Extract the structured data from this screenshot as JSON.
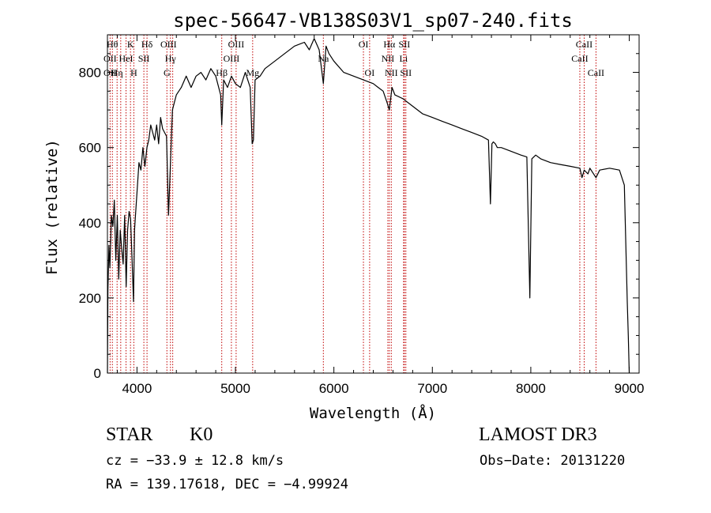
{
  "chart_data": {
    "type": "line",
    "title": "spec-56647-VB138S03V1_sp07-240.fits",
    "xlabel": "Wavelength (Å)",
    "ylabel": "Flux (relative)",
    "xlim": [
      3700,
      9100
    ],
    "ylim": [
      0,
      900
    ],
    "xticks": [
      4000,
      5000,
      6000,
      7000,
      8000,
      9000
    ],
    "yticks": [
      0,
      200,
      400,
      600,
      800
    ],
    "series": [
      {
        "name": "flux",
        "x": [
          3700,
          3705,
          3715,
          3725,
          3740,
          3755,
          3770,
          3785,
          3800,
          3815,
          3830,
          3845,
          3860,
          3875,
          3890,
          3905,
          3920,
          3935,
          3950,
          3965,
          3975,
          3985,
          4000,
          4020,
          4040,
          4060,
          4080,
          4101,
          4120,
          4140,
          4160,
          4180,
          4200,
          4220,
          4240,
          4260,
          4280,
          4300,
          4320,
          4340,
          4360,
          4380,
          4400,
          4450,
          4500,
          4550,
          4600,
          4650,
          4700,
          4750,
          4800,
          4850,
          4861,
          4880,
          4920,
          4960,
          5000,
          5050,
          5100,
          5150,
          5170,
          5183,
          5200,
          5250,
          5300,
          5400,
          5500,
          5600,
          5700,
          5750,
          5800,
          5850,
          5893,
          5920,
          5950,
          6000,
          6100,
          6200,
          6300,
          6400,
          6450,
          6500,
          6540,
          6563,
          6590,
          6620,
          6700,
          6800,
          6900,
          7000,
          7100,
          7200,
          7300,
          7400,
          7500,
          7570,
          7590,
          7605,
          7620,
          7640,
          7660,
          7700,
          7800,
          7900,
          7960,
          7990,
          8010,
          8030,
          8050,
          8100,
          8200,
          8300,
          8400,
          8498,
          8520,
          8542,
          8580,
          8600,
          8662,
          8700,
          8800,
          8900,
          8950,
          8980,
          8990,
          9000
        ],
        "y": [
          0,
          220,
          340,
          280,
          420,
          390,
          460,
          300,
          420,
          250,
          380,
          330,
          290,
          420,
          230,
          380,
          430,
          410,
          300,
          190,
          380,
          420,
          480,
          560,
          540,
          600,
          550,
          600,
          620,
          660,
          640,
          620,
          660,
          610,
          680,
          650,
          640,
          630,
          420,
          560,
          700,
          720,
          740,
          760,
          790,
          760,
          790,
          800,
          780,
          810,
          790,
          740,
          660,
          780,
          760,
          790,
          770,
          760,
          800,
          760,
          610,
          620,
          780,
          790,
          810,
          830,
          850,
          870,
          880,
          860,
          890,
          860,
          770,
          870,
          850,
          830,
          800,
          790,
          780,
          770,
          760,
          750,
          720,
          700,
          760,
          740,
          730,
          710,
          690,
          680,
          670,
          660,
          650,
          640,
          630,
          620,
          450,
          610,
          615,
          610,
          600,
          600,
          590,
          580,
          575,
          200,
          570,
          575,
          580,
          570,
          560,
          555,
          550,
          545,
          520,
          540,
          530,
          545,
          520,
          540,
          545,
          540,
          500,
          190,
          100,
          0
        ]
      }
    ],
    "line_labels": [
      {
        "wavelength": 3750,
        "row": 1,
        "text": "Hθ"
      },
      {
        "wavelength": 3727,
        "row": 2,
        "text": "OII"
      },
      {
        "wavelength": 3727,
        "row": 3,
        "text": "OII"
      },
      {
        "wavelength": 3798,
        "row": 3,
        "text": "Hη"
      },
      {
        "wavelength": 3889,
        "row": 2,
        "text": "HeI"
      },
      {
        "wavelength": 3934,
        "row": 1,
        "text": "K"
      },
      {
        "wavelength": 3968,
        "row": 3,
        "text": "H"
      },
      {
        "wavelength": 4070,
        "row": 2,
        "text": "SII"
      },
      {
        "wavelength": 4102,
        "row": 1,
        "text": "Hδ"
      },
      {
        "wavelength": 4320,
        "row": 1,
        "text": "OIII"
      },
      {
        "wavelength": 4340,
        "row": 2,
        "text": "Hγ"
      },
      {
        "wavelength": 4304,
        "row": 3,
        "text": "G"
      },
      {
        "wavelength": 4861,
        "row": 3,
        "text": "Hβ"
      },
      {
        "wavelength": 5007,
        "row": 1,
        "text": "OIII"
      },
      {
        "wavelength": 4959,
        "row": 2,
        "text": "OIII"
      },
      {
        "wavelength": 5175,
        "row": 3,
        "text": "Mg"
      },
      {
        "wavelength": 5893,
        "row": 2,
        "text": "Na"
      },
      {
        "wavelength": 6300,
        "row": 1,
        "text": "OI"
      },
      {
        "wavelength": 6363,
        "row": 3,
        "text": "OI"
      },
      {
        "wavelength": 6563,
        "row": 1,
        "text": "Hα"
      },
      {
        "wavelength": 6548,
        "row": 2,
        "text": "NII"
      },
      {
        "wavelength": 6583,
        "row": 3,
        "text": "NII"
      },
      {
        "wavelength": 6716,
        "row": 1,
        "text": "SII"
      },
      {
        "wavelength": 6708,
        "row": 2,
        "text": "Li"
      },
      {
        "wavelength": 6731,
        "row": 3,
        "text": "SII"
      },
      {
        "wavelength": 8542,
        "row": 1,
        "text": "CaII"
      },
      {
        "wavelength": 8498,
        "row": 2,
        "text": "CaII"
      },
      {
        "wavelength": 8662,
        "row": 3,
        "text": "CaII"
      }
    ],
    "line_markers": [
      3727,
      3750,
      3798,
      3835,
      3889,
      3934,
      3968,
      4070,
      4102,
      4304,
      4340,
      4363,
      4861,
      4959,
      5007,
      5175,
      5893,
      6300,
      6363,
      6548,
      6563,
      6583,
      6708,
      6716,
      6731,
      8498,
      8542,
      8662
    ],
    "marker_color": "#c00000",
    "line_color": "#000000"
  },
  "info": {
    "object_class": "STAR",
    "subclass": "K0",
    "survey": "LAMOST DR3",
    "cz": "cz = −33.9 ± 12.8 km/s",
    "obs_date": "Obs−Date: 20131220",
    "radec": "RA = 139.17618, DEC =  −4.99924"
  }
}
